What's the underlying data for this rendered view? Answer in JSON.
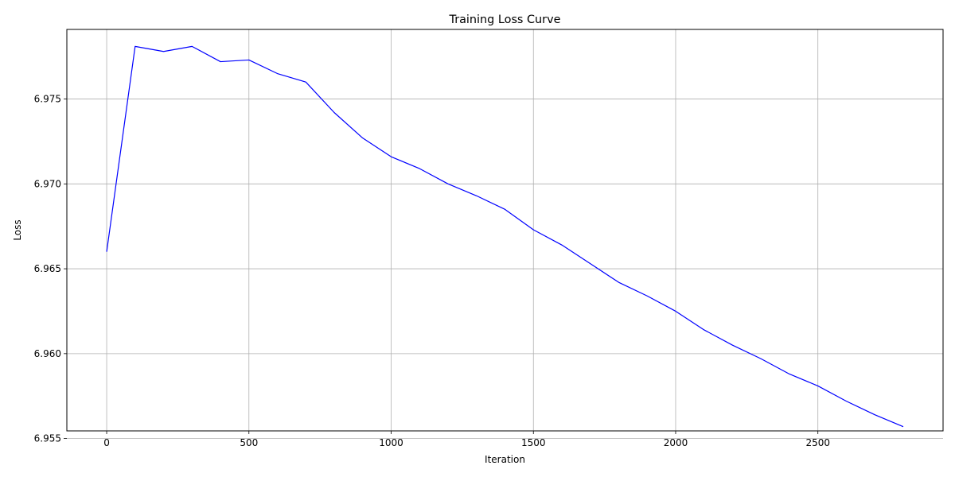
{
  "chart_data": {
    "type": "line",
    "title": "Training Loss Curve",
    "xlabel": "Iteration",
    "ylabel": "Loss",
    "xlim": [
      -140,
      2940
    ],
    "ylim": [
      6.95545,
      6.9791
    ],
    "xticks": [
      0,
      500,
      1000,
      1500,
      2000,
      2500
    ],
    "xtick_labels": [
      "0",
      "500",
      "1000",
      "1500",
      "2000",
      "2500"
    ],
    "yticks": [
      6.955,
      6.96,
      6.965,
      6.97,
      6.975
    ],
    "ytick_labels": [
      "6.955",
      "6.960",
      "6.965",
      "6.970",
      "6.975"
    ],
    "grid": true,
    "line_color": "#0000ff",
    "x": [
      0,
      100,
      200,
      300,
      400,
      500,
      600,
      700,
      800,
      900,
      1000,
      1100,
      1200,
      1300,
      1400,
      1500,
      1600,
      1700,
      1800,
      1900,
      2000,
      2100,
      2200,
      2300,
      2400,
      2500,
      2600,
      2700,
      2800
    ],
    "series": [
      {
        "values": [
          6.966,
          6.9781,
          6.9778,
          6.9781,
          6.9772,
          6.9773,
          6.9765,
          6.976,
          6.9742,
          6.9727,
          6.9716,
          6.9709,
          6.97,
          6.9693,
          6.9685,
          6.9673,
          6.9664,
          6.9653,
          6.9642,
          6.9634,
          6.9625,
          6.9614,
          6.9605,
          6.9597,
          6.9588,
          6.9581,
          6.9572,
          6.9564,
          6.9557
        ]
      }
    ]
  }
}
